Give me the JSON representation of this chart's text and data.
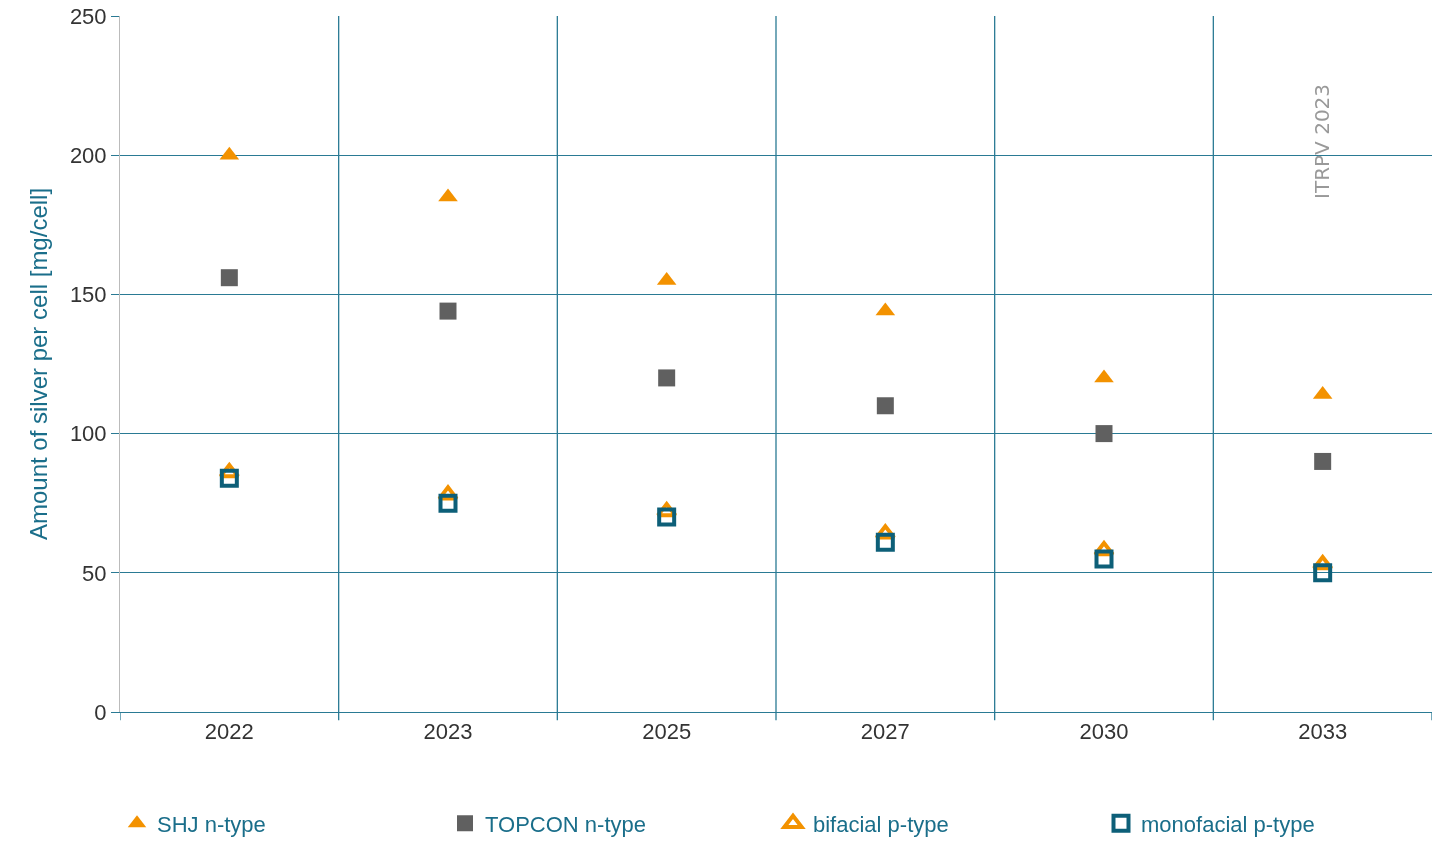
{
  "chart_data": {
    "type": "scatter",
    "ylabel": "Amount of silver per cell [mg/cell]",
    "categories": [
      "2022",
      "2023",
      "2025",
      "2027",
      "2030",
      "2033"
    ],
    "series": [
      {
        "name": "SHJ n-type",
        "color": "#f39200",
        "marker": "triangle",
        "values": [
          200,
          185,
          155,
          144,
          120,
          114
        ]
      },
      {
        "name": "TOPCON n-type",
        "color": "#606060",
        "marker": "square",
        "values": [
          156,
          144,
          120,
          110,
          100,
          90
        ]
      },
      {
        "name": "bifacial p-type",
        "color": "#f39200",
        "marker": "triangle",
        "values": [
          86,
          78,
          72,
          64,
          58,
          53
        ]
      },
      {
        "name": "monofacial p-type",
        "color": "#0d5f78",
        "marker": "square",
        "values": [
          84,
          75,
          70,
          61,
          55,
          50
        ]
      }
    ],
    "ylim": [
      0,
      250
    ],
    "yticks": [
      0,
      50,
      100,
      150,
      200,
      250
    ],
    "grid": true,
    "legend": "bottom",
    "annotations": [
      "ITRPV 2023"
    ]
  }
}
